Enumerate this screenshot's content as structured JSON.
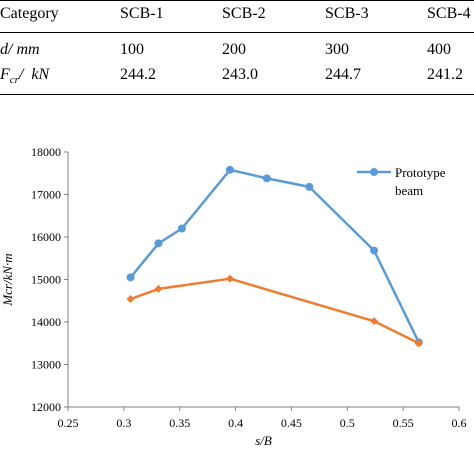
{
  "table": {
    "header": [
      "Category",
      "SCB-1",
      "SCB-2",
      "SCB-3",
      "SCB-4"
    ],
    "rows": [
      {
        "label": "d/ mm",
        "values": [
          "100",
          "200",
          "300",
          "400"
        ]
      },
      {
        "label": "F_cr/  kN",
        "values": [
          "244.2",
          "243.0",
          "244.7",
          "241.2"
        ]
      }
    ]
  },
  "chart_data": {
    "type": "line",
    "xlabel": "s/B",
    "ylabel": "Mcr/kN·m",
    "xlim": [
      0.25,
      0.6
    ],
    "ylim": [
      12000,
      18000
    ],
    "xticks": [
      "0.25",
      "0.3",
      "0.35",
      "0.4",
      "0.45",
      "0.5",
      "0.55",
      "0.6"
    ],
    "yticks": [
      "12000",
      "13000",
      "14000",
      "15000",
      "16000",
      "17000",
      "18000"
    ],
    "grid": false,
    "legend_position": "top-right",
    "series": [
      {
        "name": "Prototype beam",
        "color": "#5b9bd5",
        "marker": "circle",
        "x": [
          0.306,
          0.331,
          0.352,
          0.395,
          0.428,
          0.466,
          0.524,
          0.564
        ],
        "y": [
          15050,
          15850,
          16200,
          17580,
          17380,
          17180,
          15680,
          13520
        ]
      },
      {
        "name": "",
        "color": "#ed7d31",
        "marker": "diamond",
        "x": [
          0.306,
          0.331,
          0.395,
          0.524,
          0.564
        ],
        "y": [
          14540,
          14780,
          15020,
          14020,
          13500
        ]
      }
    ]
  }
}
